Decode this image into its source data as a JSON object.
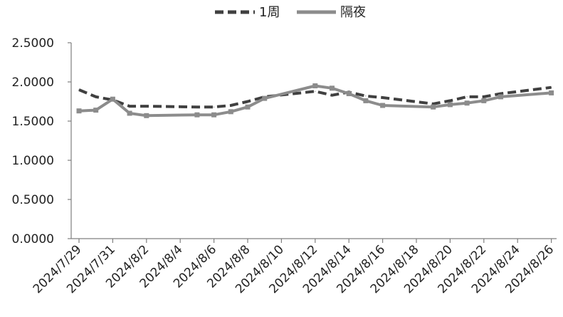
{
  "chart_data": {
    "type": "line",
    "title": "",
    "xlabel": "",
    "ylabel": "",
    "ylim": [
      0,
      2.5
    ],
    "yticks": [
      "0.0000",
      "0.5000",
      "1.0000",
      "1.5000",
      "2.0000",
      "2.5000"
    ],
    "grid": false,
    "legend_position": "top-center",
    "x": [
      "2024/7/29",
      "2024/7/30",
      "2024/7/31",
      "2024/8/1",
      "2024/8/2",
      "2024/8/5",
      "2024/8/6",
      "2024/8/7",
      "2024/8/8",
      "2024/8/9",
      "2024/8/12",
      "2024/8/13",
      "2024/8/14",
      "2024/8/15",
      "2024/8/16",
      "2024/8/19",
      "2024/8/20",
      "2024/8/21",
      "2024/8/22",
      "2024/8/23",
      "2024/8/26"
    ],
    "xticks": [
      "2024/7/29",
      "2024/7/31",
      "2024/8/2",
      "2024/8/4",
      "2024/8/6",
      "2024/8/8",
      "2024/8/10",
      "2024/8/12",
      "2024/8/14",
      "2024/8/16",
      "2024/8/18",
      "2024/8/20",
      "2024/8/22",
      "2024/8/24",
      "2024/8/26"
    ],
    "series": [
      {
        "name": "1周",
        "style": "dashed",
        "color": "#404040",
        "values": [
          1.9,
          1.81,
          1.77,
          1.69,
          1.69,
          1.68,
          1.68,
          1.7,
          1.75,
          1.81,
          1.88,
          1.83,
          1.87,
          1.82,
          1.8,
          1.72,
          1.76,
          1.81,
          1.81,
          1.85,
          1.93
        ]
      },
      {
        "name": "隔夜",
        "style": "solid",
        "color": "#8c8c8c",
        "values": [
          1.63,
          1.64,
          1.78,
          1.6,
          1.57,
          1.58,
          1.58,
          1.62,
          1.68,
          1.79,
          1.95,
          1.92,
          1.85,
          1.76,
          1.7,
          1.68,
          1.71,
          1.73,
          1.76,
          1.81,
          1.86
        ]
      }
    ]
  }
}
